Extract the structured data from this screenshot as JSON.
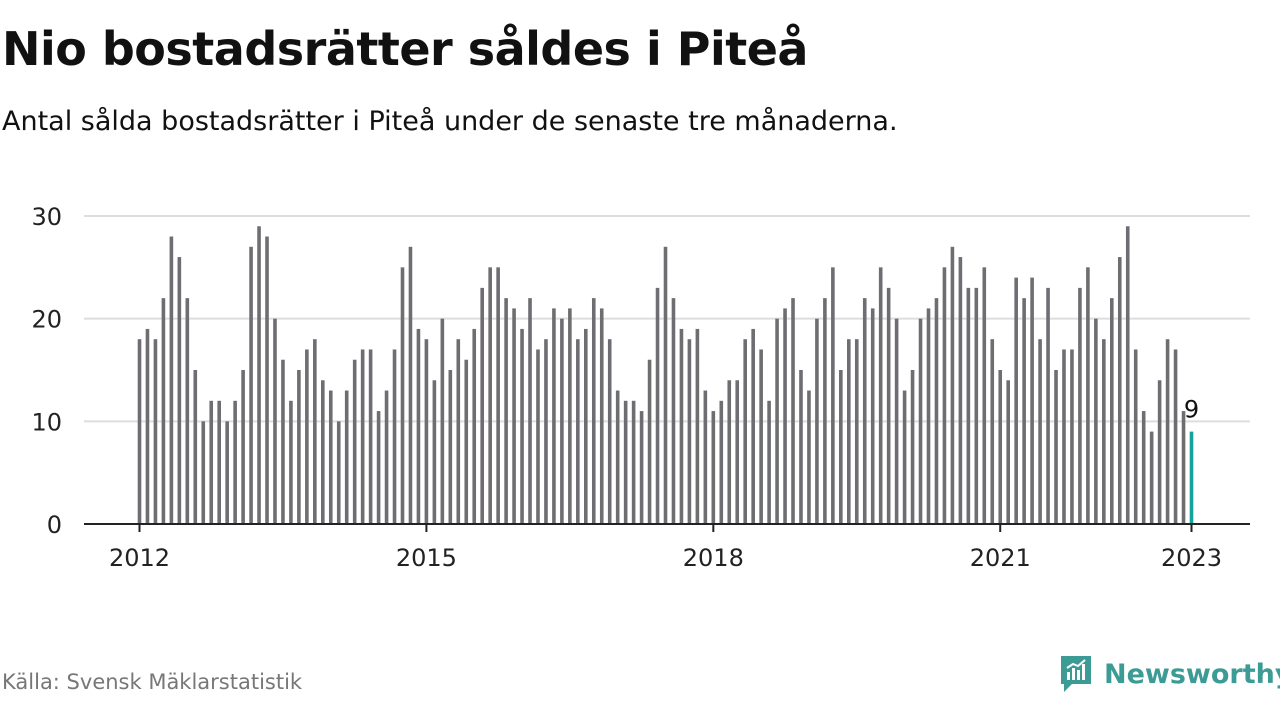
{
  "header": {
    "title": "Nio bostadsrätter såldes i Piteå",
    "subtitle": "Antal sålda bostadsrätter i Piteå under de senaste tre månaderna."
  },
  "footer": {
    "source": "Källa: Svensk Mäklarstatistik",
    "brand": "Newsworthy"
  },
  "colors": {
    "bar": "#6e6d72",
    "highlight": "#16a39e",
    "grid": "#dddddd",
    "axis": "#222222",
    "brand": "#3d9b96"
  },
  "chart_data": {
    "type": "bar",
    "title": "Nio bostadsrätter såldes i Piteå",
    "subtitle": "Antal sålda bostadsrätter i Piteå under de senaste tre månaderna.",
    "xlabel": "",
    "ylabel": "",
    "ylim": [
      0,
      30
    ],
    "yticks": [
      0,
      10,
      20,
      30
    ],
    "xticks": [
      {
        "label": "2012",
        "index": 0
      },
      {
        "label": "2015",
        "index": 36
      },
      {
        "label": "2018",
        "index": 72
      },
      {
        "label": "2021",
        "index": 108
      },
      {
        "label": "2023",
        "index": 132
      }
    ],
    "grid": true,
    "start": "2012-01",
    "end": "2023-01",
    "highlight_label": "9",
    "series": [
      {
        "name": "Antal sålda bostadsrätter",
        "values": [
          18,
          19,
          18,
          22,
          28,
          26,
          22,
          15,
          10,
          12,
          12,
          10,
          12,
          15,
          27,
          29,
          28,
          20,
          16,
          12,
          15,
          17,
          18,
          14,
          13,
          10,
          13,
          16,
          17,
          17,
          11,
          13,
          17,
          25,
          27,
          19,
          18,
          14,
          20,
          15,
          18,
          16,
          19,
          23,
          25,
          25,
          22,
          21,
          19,
          22,
          17,
          18,
          21,
          20,
          21,
          18,
          19,
          22,
          21,
          18,
          13,
          12,
          12,
          11,
          16,
          23,
          27,
          22,
          19,
          18,
          19,
          13,
          11,
          12,
          14,
          14,
          18,
          19,
          17,
          12,
          20,
          21,
          22,
          15,
          13,
          20,
          22,
          25,
          15,
          18,
          18,
          22,
          21,
          25,
          23,
          20,
          13,
          15,
          20,
          21,
          22,
          25,
          27,
          26,
          23,
          23,
          25,
          18,
          15,
          14,
          24,
          22,
          24,
          18,
          23,
          15,
          17,
          17,
          23,
          25,
          20,
          18,
          22,
          26,
          29,
          17,
          11,
          9,
          14,
          18,
          17,
          11,
          9
        ]
      }
    ]
  }
}
